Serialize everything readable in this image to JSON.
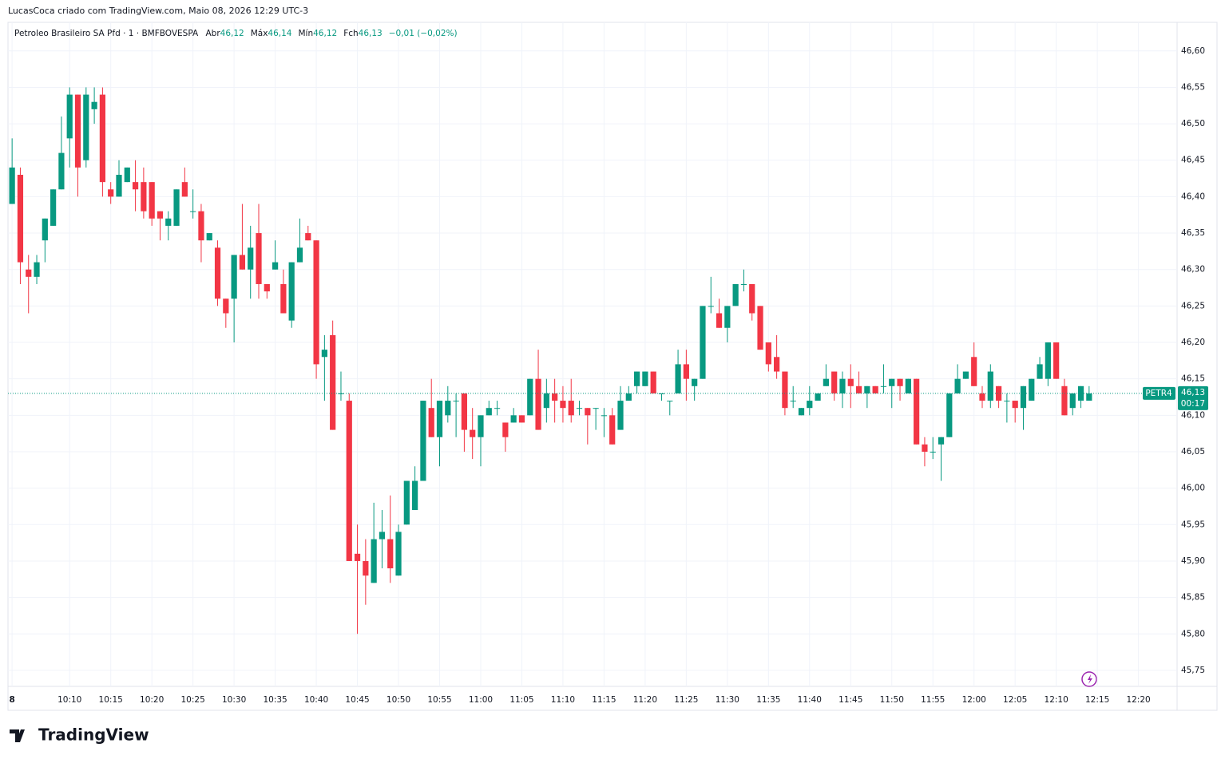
{
  "chart_data": {
    "type": "candlestick",
    "credit": "LucasCoca criado com TradingView.com, Maio 08, 2026 12:29 UTC-3",
    "instrument": "Petroleo Brasileiro SA Pfd · 1 · BMFBOVESPA",
    "legend": [
      {
        "name": "Abr",
        "value": {
          "value": 46.12,
          "label": "46,12"
        }
      },
      {
        "name": "Máx",
        "value": {
          "value": 46.14,
          "label": "46,14"
        }
      },
      {
        "name": "Mín",
        "value": {
          "value": 46.12,
          "label": "46,12"
        }
      },
      {
        "name": "Fch",
        "value": {
          "value": 46.13,
          "label": "46,13"
        }
      }
    ],
    "change": "−0,01 (−0,02%)",
    "up_color": "#089981",
    "down_color": "#f23645",
    "last": {
      "symbol": "PETR4",
      "price": {
        "value": 46.13,
        "label": "46,13"
      },
      "countdown": "00:17"
    },
    "brand": "TradingView",
    "grid": true,
    "xlim": [
      -0.5,
      141.7
    ],
    "ylim": [
      45.728,
      46.637
    ],
    "yticks": [
      {
        "value": 46.6,
        "label": "46,60"
      },
      {
        "value": 46.55,
        "label": "46,55"
      },
      {
        "value": 46.5,
        "label": "46,50"
      },
      {
        "value": 46.45,
        "label": "46,45"
      },
      {
        "value": 46.4,
        "label": "46,40"
      },
      {
        "value": 46.35,
        "label": "46,35"
      },
      {
        "value": 46.3,
        "label": "46,30"
      },
      {
        "value": 46.25,
        "label": "46,25"
      },
      {
        "value": 46.2,
        "label": "46,20"
      },
      {
        "value": 46.15,
        "label": "46,15"
      },
      {
        "value": 46.1,
        "label": "46,10"
      },
      {
        "value": 46.05,
        "label": "46,05"
      },
      {
        "value": 46.0,
        "label": "46,00"
      },
      {
        "value": 45.95,
        "label": "45,95"
      },
      {
        "value": 45.9,
        "label": "45,90"
      },
      {
        "value": 45.85,
        "label": "45,85"
      },
      {
        "value": 45.8,
        "label": "45,80"
      },
      {
        "value": 45.75,
        "label": "45,75"
      }
    ],
    "xticks": [
      {
        "value": 0,
        "label": "8"
      },
      {
        "value": 7,
        "label": "10:10"
      },
      {
        "value": 12,
        "label": "10:15"
      },
      {
        "value": 17,
        "label": "10:20"
      },
      {
        "value": 22,
        "label": "10:25"
      },
      {
        "value": 27,
        "label": "10:30"
      },
      {
        "value": 32,
        "label": "10:35"
      },
      {
        "value": 37,
        "label": "10:40"
      },
      {
        "value": 42,
        "label": "10:45"
      },
      {
        "value": 47,
        "label": "10:50"
      },
      {
        "value": 52,
        "label": "10:55"
      },
      {
        "value": 57,
        "label": "11:00"
      },
      {
        "value": 62,
        "label": "11:05"
      },
      {
        "value": 67,
        "label": "11:10"
      },
      {
        "value": 72,
        "label": "11:15"
      },
      {
        "value": 77,
        "label": "11:20"
      },
      {
        "value": 82,
        "label": "11:25"
      },
      {
        "value": 87,
        "label": "11:30"
      },
      {
        "value": 92,
        "label": "11:35"
      },
      {
        "value": 97,
        "label": "11:40"
      },
      {
        "value": 102,
        "label": "11:45"
      },
      {
        "value": 107,
        "label": "11:50"
      },
      {
        "value": 112,
        "label": "11:55"
      },
      {
        "value": 117,
        "label": "12:00"
      },
      {
        "value": 122,
        "label": "12:05"
      },
      {
        "value": 127,
        "label": "12:10"
      },
      {
        "value": 132,
        "label": "12:15"
      },
      {
        "value": 137,
        "label": "12:20"
      }
    ],
    "ohlc": [
      [
        46.39,
        46.48,
        46.39,
        46.44
      ],
      [
        46.43,
        46.44,
        46.28,
        46.31
      ],
      [
        46.3,
        46.32,
        46.24,
        46.29
      ],
      [
        46.29,
        46.32,
        46.28,
        46.31
      ],
      [
        46.34,
        46.37,
        46.31,
        46.37
      ],
      [
        46.36,
        46.41,
        46.36,
        46.41
      ],
      [
        46.41,
        46.51,
        46.41,
        46.46
      ],
      [
        46.48,
        46.55,
        46.44,
        46.54
      ],
      [
        46.54,
        46.54,
        46.4,
        46.44
      ],
      [
        46.45,
        46.55,
        46.44,
        46.54
      ],
      [
        46.52,
        46.55,
        46.5,
        46.53
      ],
      [
        46.54,
        46.55,
        46.4,
        46.42
      ],
      [
        46.41,
        46.42,
        46.39,
        46.4
      ],
      [
        46.4,
        46.45,
        46.4,
        46.43
      ],
      [
        46.42,
        46.44,
        46.42,
        46.44
      ],
      [
        46.42,
        46.45,
        46.38,
        46.41
      ],
      [
        46.42,
        46.44,
        46.37,
        46.38
      ],
      [
        46.42,
        46.42,
        46.36,
        46.37
      ],
      [
        46.38,
        46.38,
        46.34,
        46.37
      ],
      [
        46.36,
        46.38,
        46.34,
        46.37
      ],
      [
        46.36,
        46.41,
        46.36,
        46.41
      ],
      [
        46.42,
        46.44,
        46.4,
        46.4
      ],
      [
        46.38,
        46.41,
        46.37,
        46.38
      ],
      [
        46.38,
        46.39,
        46.31,
        46.34
      ],
      [
        46.34,
        46.35,
        46.34,
        46.35
      ],
      [
        46.33,
        46.34,
        46.25,
        46.26
      ],
      [
        46.26,
        46.26,
        46.22,
        46.24
      ],
      [
        46.26,
        46.32,
        46.2,
        46.32
      ],
      [
        46.32,
        46.39,
        46.3,
        46.3
      ],
      [
        46.3,
        46.36,
        46.26,
        46.33
      ],
      [
        46.35,
        46.39,
        46.26,
        46.28
      ],
      [
        46.28,
        46.28,
        46.26,
        46.27
      ],
      [
        46.3,
        46.34,
        46.3,
        46.31
      ],
      [
        46.28,
        46.3,
        46.24,
        46.24
      ],
      [
        46.23,
        46.31,
        46.22,
        46.31
      ],
      [
        46.31,
        46.37,
        46.31,
        46.33
      ],
      [
        46.35,
        46.36,
        46.34,
        46.34
      ],
      [
        46.34,
        46.34,
        46.15,
        46.17
      ],
      [
        46.18,
        46.21,
        46.12,
        46.19
      ],
      [
        46.21,
        46.23,
        46.08,
        46.08
      ],
      [
        46.13,
        46.16,
        46.12,
        46.13
      ],
      [
        46.12,
        46.13,
        45.9,
        45.9
      ],
      [
        45.91,
        45.95,
        45.8,
        45.9
      ],
      [
        45.9,
        45.93,
        45.84,
        45.88
      ],
      [
        45.87,
        45.98,
        45.87,
        45.93
      ],
      [
        45.93,
        45.97,
        45.89,
        45.94
      ],
      [
        45.93,
        45.99,
        45.87,
        45.89
      ],
      [
        45.88,
        45.95,
        45.88,
        45.94
      ],
      [
        45.95,
        46.01,
        45.95,
        46.01
      ],
      [
        45.97,
        46.03,
        45.97,
        46.01
      ],
      [
        46.01,
        46.12,
        46.01,
        46.12
      ],
      [
        46.11,
        46.15,
        46.07,
        46.07
      ],
      [
        46.07,
        46.12,
        46.03,
        46.12
      ],
      [
        46.1,
        46.14,
        46.09,
        46.12
      ],
      [
        46.12,
        46.13,
        46.07,
        46.12
      ],
      [
        46.13,
        46.13,
        46.05,
        46.08
      ],
      [
        46.08,
        46.11,
        46.04,
        46.07
      ],
      [
        46.07,
        46.1,
        46.03,
        46.1
      ],
      [
        46.1,
        46.12,
        46.1,
        46.11
      ],
      [
        46.11,
        46.12,
        46.1,
        46.11
      ],
      [
        46.09,
        46.09,
        46.05,
        46.07
      ],
      [
        46.09,
        46.11,
        46.09,
        46.1
      ],
      [
        46.1,
        46.1,
        46.09,
        46.09
      ],
      [
        46.1,
        46.15,
        46.1,
        46.15
      ],
      [
        46.15,
        46.19,
        46.08,
        46.08
      ],
      [
        46.11,
        46.15,
        46.09,
        46.13
      ],
      [
        46.13,
        46.15,
        46.09,
        46.12
      ],
      [
        46.12,
        46.14,
        46.09,
        46.11
      ],
      [
        46.12,
        46.15,
        46.09,
        46.1
      ],
      [
        46.11,
        46.12,
        46.1,
        46.11
      ],
      [
        46.11,
        46.11,
        46.06,
        46.1
      ],
      [
        46.11,
        46.11,
        46.08,
        46.11
      ],
      [
        46.1,
        46.11,
        46.07,
        46.1
      ],
      [
        46.1,
        46.11,
        46.06,
        46.06
      ],
      [
        46.08,
        46.14,
        46.08,
        46.12
      ],
      [
        46.12,
        46.14,
        46.12,
        46.13
      ],
      [
        46.14,
        46.16,
        46.13,
        46.16
      ],
      [
        46.14,
        46.16,
        46.14,
        46.16
      ],
      [
        46.16,
        46.16,
        46.13,
        46.13
      ],
      [
        46.13,
        46.13,
        46.12,
        46.13
      ],
      [
        46.12,
        46.12,
        46.1,
        46.12
      ],
      [
        46.13,
        46.19,
        46.13,
        46.17
      ],
      [
        46.17,
        46.19,
        46.12,
        46.15
      ],
      [
        46.14,
        46.15,
        46.12,
        46.15
      ],
      [
        46.15,
        46.25,
        46.15,
        46.25
      ],
      [
        46.25,
        46.29,
        46.24,
        46.25
      ],
      [
        46.24,
        46.26,
        46.22,
        46.22
      ],
      [
        46.22,
        46.25,
        46.2,
        46.25
      ],
      [
        46.25,
        46.28,
        46.25,
        46.28
      ],
      [
        46.28,
        46.3,
        46.27,
        46.28
      ],
      [
        46.28,
        46.28,
        46.23,
        46.24
      ],
      [
        46.25,
        46.25,
        46.19,
        46.19
      ],
      [
        46.2,
        46.2,
        46.16,
        46.17
      ],
      [
        46.18,
        46.21,
        46.15,
        46.16
      ],
      [
        46.16,
        46.16,
        46.1,
        46.11
      ],
      [
        46.12,
        46.14,
        46.11,
        46.12
      ],
      [
        46.1,
        46.11,
        46.1,
        46.11
      ],
      [
        46.11,
        46.14,
        46.1,
        46.12
      ],
      [
        46.12,
        46.13,
        46.12,
        46.13
      ],
      [
        46.14,
        46.17,
        46.14,
        46.15
      ],
      [
        46.16,
        46.16,
        46.12,
        46.13
      ],
      [
        46.13,
        46.16,
        46.11,
        46.15
      ],
      [
        46.15,
        46.17,
        46.11,
        46.14
      ],
      [
        46.14,
        46.16,
        46.13,
        46.13
      ],
      [
        46.13,
        46.14,
        46.11,
        46.14
      ],
      [
        46.14,
        46.14,
        46.13,
        46.13
      ],
      [
        46.14,
        46.17,
        46.13,
        46.14
      ],
      [
        46.14,
        46.15,
        46.11,
        46.15
      ],
      [
        46.15,
        46.15,
        46.12,
        46.14
      ],
      [
        46.13,
        46.15,
        46.13,
        46.15
      ],
      [
        46.15,
        46.15,
        46.06,
        46.06
      ],
      [
        46.06,
        46.07,
        46.03,
        46.05
      ],
      [
        46.05,
        46.07,
        46.04,
        46.05
      ],
      [
        46.06,
        46.07,
        46.01,
        46.07
      ],
      [
        46.07,
        46.13,
        46.07,
        46.13
      ],
      [
        46.13,
        46.17,
        46.13,
        46.15
      ],
      [
        46.15,
        46.16,
        46.15,
        46.16
      ],
      [
        46.18,
        46.2,
        46.14,
        46.14
      ],
      [
        46.13,
        46.14,
        46.11,
        46.12
      ],
      [
        46.12,
        46.17,
        46.11,
        46.16
      ],
      [
        46.14,
        46.14,
        46.11,
        46.12
      ],
      [
        46.12,
        46.13,
        46.09,
        46.12
      ],
      [
        46.12,
        46.12,
        46.09,
        46.11
      ],
      [
        46.11,
        46.14,
        46.08,
        46.14
      ],
      [
        46.12,
        46.15,
        46.12,
        46.15
      ],
      [
        46.15,
        46.18,
        46.15,
        46.17
      ],
      [
        46.15,
        46.2,
        46.14,
        46.2
      ],
      [
        46.2,
        46.2,
        46.15,
        46.15
      ],
      [
        46.14,
        46.15,
        46.1,
        46.1
      ],
      [
        46.11,
        46.13,
        46.1,
        46.13
      ],
      [
        46.12,
        46.14,
        46.11,
        46.14
      ],
      [
        46.12,
        46.14,
        46.12,
        46.13
      ]
    ]
  }
}
